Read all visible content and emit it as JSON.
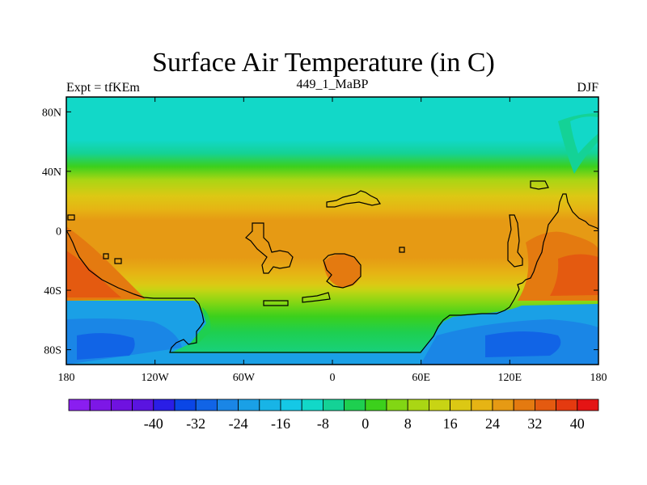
{
  "title": "Surface Air Temperature (in C)",
  "left_label": "Expt = tfKEm",
  "center_label": "449_1_MaBP",
  "right_label": "DJF",
  "map": {
    "lon_range": [
      -180,
      180
    ],
    "lat_range": [
      -90,
      90
    ],
    "x_ticks": [
      {
        "value": -180,
        "label": "180"
      },
      {
        "value": -120,
        "label": "120W"
      },
      {
        "value": -60,
        "label": "60W"
      },
      {
        "value": 0,
        "label": "0"
      },
      {
        "value": 60,
        "label": "60E"
      },
      {
        "value": 120,
        "label": "120E"
      },
      {
        "value": 180,
        "label": "180"
      }
    ],
    "y_ticks": [
      {
        "value": 80,
        "label": "80N"
      },
      {
        "value": 40,
        "label": "40N"
      },
      {
        "value": 0,
        "label": "0"
      },
      {
        "value": -40,
        "label": "40S"
      },
      {
        "value": -80,
        "label": "80S"
      }
    ]
  },
  "colorbar": {
    "colors": [
      "#8a1ef0",
      "#7d17e6",
      "#6f12e0",
      "#5a14e0",
      "#2a1ee6",
      "#0a46e6",
      "#1164e6",
      "#1a86e6",
      "#1aa0e6",
      "#18b4e6",
      "#15c8e6",
      "#12d8c8",
      "#14d296",
      "#1ecf50",
      "#3cd01c",
      "#82d614",
      "#aad614",
      "#c8d414",
      "#dcc814",
      "#e6b414",
      "#e69a14",
      "#e47a10",
      "#e45a10",
      "#e43a10",
      "#e41414"
    ],
    "tick_values": [
      -40,
      -32,
      -24,
      -16,
      -8,
      0,
      8,
      16,
      24,
      32,
      40
    ],
    "tick_labels": [
      "-40",
      "-32",
      "-24",
      "-16",
      "-8",
      "0",
      "8",
      "16",
      "24",
      "32",
      "40"
    ]
  }
}
